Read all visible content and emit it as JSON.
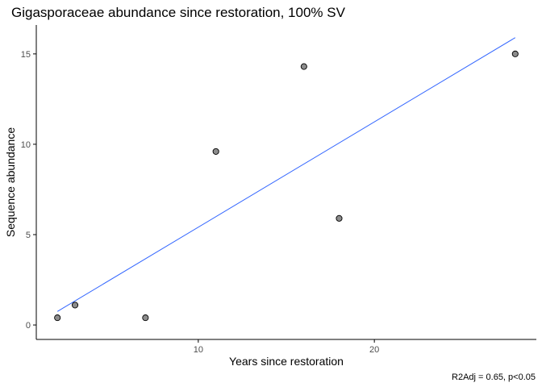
{
  "chart_data": {
    "type": "scatter",
    "title": "Gigasporaceae abundance since restoration, 100% SV",
    "xlabel": "Years since restoration",
    "ylabel": "Sequence abundance",
    "caption": "R2Adj = 0.65, p<0.05",
    "xlim": [
      0.8,
      29.2
    ],
    "ylim": [
      -0.8,
      16.6
    ],
    "x_ticks": [
      10,
      20
    ],
    "y_ticks": [
      0,
      5,
      10,
      15
    ],
    "grid": false,
    "legend": "none",
    "points": [
      {
        "x": 2,
        "y": 0.4
      },
      {
        "x": 3,
        "y": 1.1
      },
      {
        "x": 7,
        "y": 0.4
      },
      {
        "x": 11,
        "y": 9.6
      },
      {
        "x": 16,
        "y": 14.3
      },
      {
        "x": 18,
        "y": 5.9
      },
      {
        "x": 28,
        "y": 15.0
      }
    ],
    "fit_line": {
      "x": [
        2,
        28
      ],
      "y": [
        0.75,
        15.9
      ]
    },
    "colors": {
      "point_fill": "#8c8c8c",
      "point_stroke": "#000000",
      "fit_line": "#3366ff",
      "axis": "#000000",
      "tick_label": "#4d4d4d"
    }
  }
}
